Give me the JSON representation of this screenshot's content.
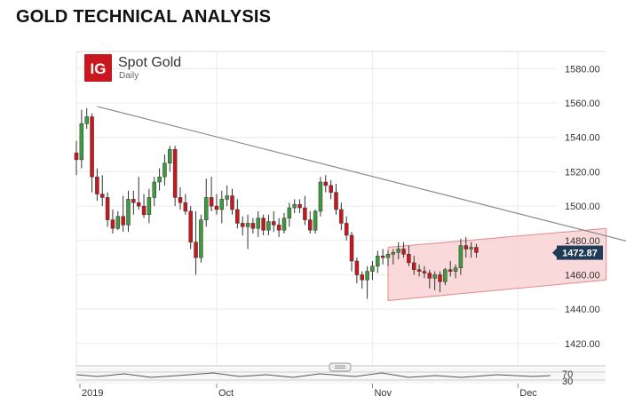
{
  "heading": "GOLD TECHNICAL ANALYSIS",
  "brand": {
    "logo_text": "IG",
    "logo_color": "#c8171e"
  },
  "chart_data": {
    "type": "candlestick",
    "title": "Spot Gold",
    "subtitle": "Daily",
    "ylim": [
      1407,
      1590
    ],
    "y_ticks": [
      1420,
      1440,
      1460,
      1480,
      1500,
      1520,
      1540,
      1560,
      1580
    ],
    "y_tick_labels": [
      "1420.00",
      "1440.00",
      "1460.00",
      "1480.00",
      "1500.00",
      "1520.00",
      "1540.00",
      "1560.00",
      "1580.00"
    ],
    "x_tick_labels": [
      {
        "label": "2019",
        "index": 0
      },
      {
        "label": "Oct",
        "index": 27
      },
      {
        "label": "Nov",
        "index": 57
      },
      {
        "label": "Dec",
        "index": 85
      }
    ],
    "last_price": 1472.87,
    "last_price_label": "1472.87",
    "up_color": "#3f9a3f",
    "down_color": "#c8171e",
    "candles": [
      [
        1531,
        1538,
        1518,
        1527
      ],
      [
        1527,
        1556,
        1522,
        1548
      ],
      [
        1548,
        1557,
        1545,
        1552
      ],
      [
        1552,
        1554,
        1508,
        1517
      ],
      [
        1517,
        1522,
        1503,
        1507
      ],
      [
        1507,
        1518,
        1500,
        1505
      ],
      [
        1505,
        1508,
        1488,
        1492
      ],
      [
        1492,
        1498,
        1484,
        1487
      ],
      [
        1487,
        1497,
        1486,
        1494
      ],
      [
        1494,
        1506,
        1485,
        1489
      ],
      [
        1489,
        1509,
        1485,
        1504
      ],
      [
        1504,
        1509,
        1495,
        1502
      ],
      [
        1502,
        1517,
        1498,
        1500
      ],
      [
        1500,
        1507,
        1493,
        1495
      ],
      [
        1495,
        1510,
        1490,
        1505
      ],
      [
        1505,
        1517,
        1500,
        1514
      ],
      [
        1514,
        1522,
        1509,
        1517
      ],
      [
        1517,
        1530,
        1512,
        1525
      ],
      [
        1525,
        1535,
        1520,
        1533
      ],
      [
        1533,
        1535,
        1500,
        1505
      ],
      [
        1505,
        1511,
        1498,
        1502
      ],
      [
        1502,
        1507,
        1495,
        1497
      ],
      [
        1497,
        1500,
        1475,
        1479
      ],
      [
        1479,
        1497,
        1460,
        1470
      ],
      [
        1470,
        1495,
        1467,
        1492
      ],
      [
        1492,
        1516,
        1488,
        1505
      ],
      [
        1505,
        1517,
        1497,
        1500
      ],
      [
        1500,
        1507,
        1495,
        1498
      ],
      [
        1498,
        1509,
        1490,
        1504
      ],
      [
        1504,
        1512,
        1500,
        1506
      ],
      [
        1506,
        1510,
        1495,
        1498
      ],
      [
        1498,
        1504,
        1487,
        1490
      ],
      [
        1490,
        1494,
        1483,
        1488
      ],
      [
        1488,
        1495,
        1475,
        1490
      ],
      [
        1490,
        1493,
        1484,
        1487
      ],
      [
        1487,
        1497,
        1482,
        1493
      ],
      [
        1493,
        1495,
        1483,
        1486
      ],
      [
        1486,
        1495,
        1483,
        1491
      ],
      [
        1491,
        1497,
        1485,
        1489
      ],
      [
        1489,
        1493,
        1482,
        1486
      ],
      [
        1486,
        1496,
        1484,
        1493
      ],
      [
        1493,
        1502,
        1488,
        1499
      ],
      [
        1499,
        1504,
        1496,
        1501
      ],
      [
        1501,
        1504,
        1496,
        1499
      ],
      [
        1499,
        1506,
        1489,
        1492
      ],
      [
        1492,
        1497,
        1484,
        1486
      ],
      [
        1486,
        1498,
        1484,
        1497
      ],
      [
        1497,
        1517,
        1494,
        1514
      ],
      [
        1514,
        1518,
        1508,
        1512
      ],
      [
        1512,
        1515,
        1504,
        1508
      ],
      [
        1508,
        1513,
        1495,
        1498
      ],
      [
        1498,
        1502,
        1486,
        1490
      ],
      [
        1490,
        1494,
        1480,
        1483
      ],
      [
        1483,
        1485,
        1462,
        1468
      ],
      [
        1468,
        1470,
        1455,
        1460
      ],
      [
        1460,
        1462,
        1452,
        1457
      ],
      [
        1457,
        1465,
        1446,
        1462
      ],
      [
        1462,
        1468,
        1457,
        1465
      ],
      [
        1465,
        1474,
        1461,
        1471
      ],
      [
        1471,
        1475,
        1466,
        1470
      ],
      [
        1470,
        1474,
        1465,
        1472
      ],
      [
        1472,
        1475,
        1466,
        1473
      ],
      [
        1473,
        1479,
        1469,
        1475
      ],
      [
        1475,
        1479,
        1470,
        1472
      ],
      [
        1472,
        1477,
        1465,
        1467
      ],
      [
        1467,
        1471,
        1460,
        1463
      ],
      [
        1463,
        1466,
        1459,
        1462
      ],
      [
        1462,
        1465,
        1458,
        1461
      ],
      [
        1461,
        1463,
        1452,
        1458
      ],
      [
        1458,
        1462,
        1451,
        1460
      ],
      [
        1460,
        1462,
        1450,
        1456
      ],
      [
        1456,
        1464,
        1454,
        1463
      ],
      [
        1463,
        1468,
        1459,
        1462
      ],
      [
        1462,
        1466,
        1458,
        1464
      ],
      [
        1464,
        1481,
        1460,
        1477
      ],
      [
        1477,
        1482,
        1470,
        1475
      ],
      [
        1475,
        1479,
        1470,
        1476
      ],
      [
        1476,
        1478,
        1470,
        1473
      ]
    ],
    "trend_line": {
      "from": {
        "index": 4,
        "value": 1558
      },
      "to": {
        "index": 108,
        "value": 1478
      }
    },
    "channel": {
      "upper": {
        "from": {
          "index": 60,
          "value": 1476
        },
        "to": {
          "index": 102,
          "value": 1487
        }
      },
      "lower": {
        "from": {
          "index": 60,
          "value": 1445
        },
        "to": {
          "index": 102,
          "value": 1457
        }
      },
      "fill": "#f7cccc",
      "stroke": "#e28a8a"
    },
    "indicator": {
      "levels": [
        70,
        30
      ],
      "level_labels": [
        "70",
        "30"
      ]
    }
  }
}
